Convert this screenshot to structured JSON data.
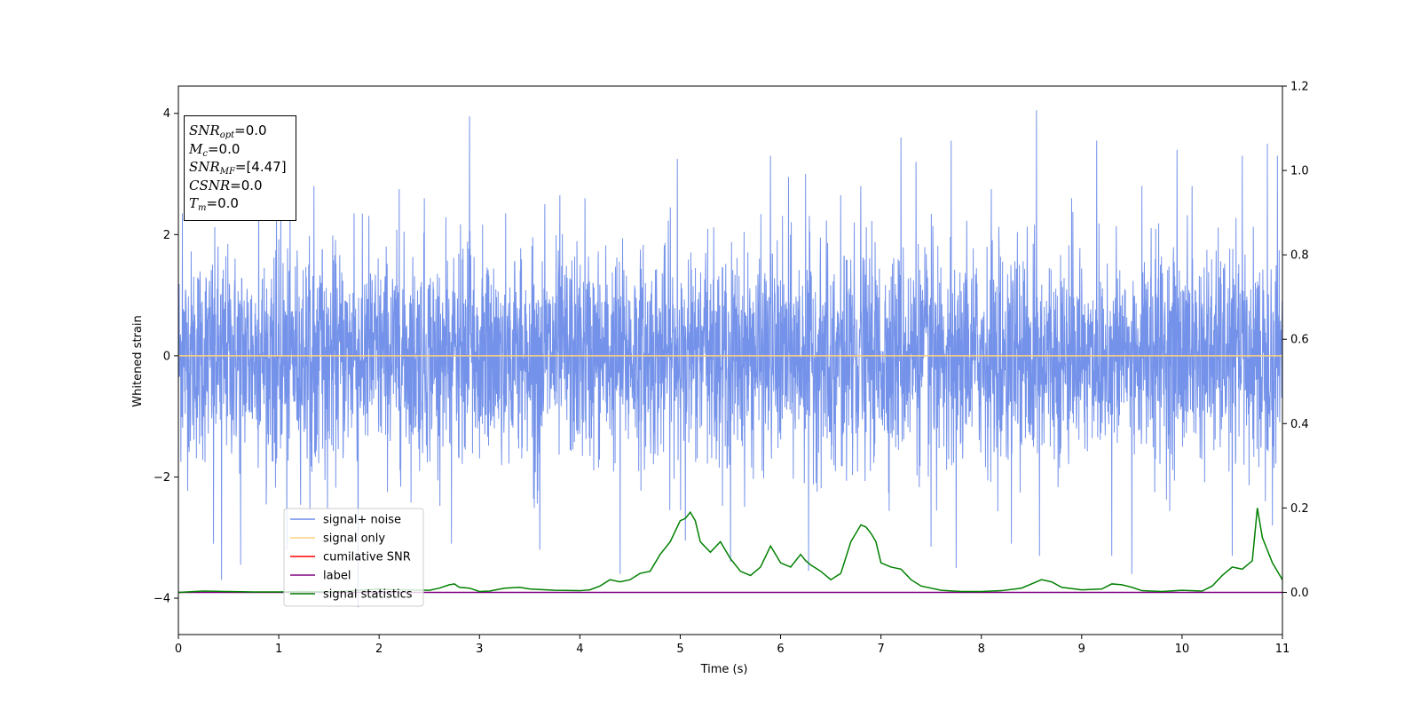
{
  "chart_data": {
    "type": "line",
    "xlabel": "Time (s)",
    "ylabel": "Whitened strain",
    "xlim": [
      0,
      11
    ],
    "ylim_left": [
      -4.6,
      4.45
    ],
    "ylim_right": [
      -0.1,
      1.2
    ],
    "xticks": [
      "0",
      "1",
      "2",
      "3",
      "4",
      "5",
      "6",
      "7",
      "8",
      "9",
      "10",
      "11"
    ],
    "yticks_left": [
      "−4",
      "−2",
      "0",
      "2",
      "4"
    ],
    "yticks_right": [
      "0.0",
      "0.2",
      "0.4",
      "0.6",
      "0.8",
      "1.0",
      "1.2"
    ],
    "legend_placement": "lower-left",
    "legend": [
      {
        "label": "signal+ noise",
        "color": "#6d8ce8"
      },
      {
        "label": "signal only",
        "color": "#ffd27f"
      },
      {
        "label": "cumilative SNR",
        "color": "#ff0000"
      },
      {
        "label": "label",
        "color": "#800080"
      },
      {
        "label": "signal statistics",
        "color": "#008000"
      }
    ],
    "annotation": {
      "snr_opt": {
        "name": "SNR",
        "sub": "opt",
        "value": "=0.0"
      },
      "mc": {
        "name": "M",
        "sub": "c",
        "value": "=0.0"
      },
      "snr_mf": {
        "name": "SNR",
        "sub": "MF",
        "value": "=[4.47]"
      },
      "csnr": {
        "name": "CSNR",
        "value": "=0.0"
      },
      "tm": {
        "name": "T",
        "sub": "m",
        "value": "=0.0"
      }
    },
    "series": [
      {
        "name": "signal+ noise",
        "axis": "left",
        "color": "#6d8ce8",
        "description": "noise-like whitened strain, mostly within about ±2 with spikes up to about ±4",
        "peaks": [
          [
            0.04,
            2.35
          ],
          [
            0.35,
            -3.1
          ],
          [
            0.43,
            -3.7
          ],
          [
            0.62,
            -3.45
          ],
          [
            0.8,
            2.75
          ],
          [
            1.02,
            2.7
          ],
          [
            1.08,
            -3.2
          ],
          [
            1.35,
            2.8
          ],
          [
            1.75,
            2.35
          ],
          [
            1.79,
            -4.15
          ],
          [
            2.2,
            2.75
          ],
          [
            2.45,
            2.6
          ],
          [
            2.72,
            -3.1
          ],
          [
            2.9,
            3.95
          ],
          [
            3.6,
            -3.2
          ],
          [
            3.65,
            2.5
          ],
          [
            3.8,
            2.65
          ],
          [
            4.05,
            2.6
          ],
          [
            4.4,
            -3.6
          ],
          [
            4.9,
            2.45
          ],
          [
            4.97,
            3.25
          ],
          [
            5.05,
            -3.05
          ],
          [
            5.5,
            -3.4
          ],
          [
            5.9,
            3.3
          ],
          [
            6.08,
            2.95
          ],
          [
            6.25,
            3.0
          ],
          [
            6.28,
            -3.55
          ],
          [
            6.6,
            2.65
          ],
          [
            6.8,
            2.8
          ],
          [
            7.2,
            3.6
          ],
          [
            7.35,
            3.2
          ],
          [
            7.5,
            -3.15
          ],
          [
            7.7,
            3.55
          ],
          [
            7.75,
            -3.5
          ],
          [
            8.1,
            2.75
          ],
          [
            8.3,
            -3.1
          ],
          [
            8.55,
            4.05
          ],
          [
            8.58,
            -3.3
          ],
          [
            8.9,
            2.6
          ],
          [
            9.15,
            3.55
          ],
          [
            9.3,
            -3.3
          ],
          [
            9.5,
            -3.6
          ],
          [
            9.6,
            2.8
          ],
          [
            9.95,
            3.4
          ],
          [
            10.1,
            2.8
          ],
          [
            10.5,
            -3.3
          ],
          [
            10.6,
            3.3
          ],
          [
            10.85,
            3.5
          ],
          [
            10.9,
            -2.8
          ],
          [
            10.95,
            3.3
          ]
        ]
      },
      {
        "name": "signal only",
        "axis": "left",
        "color": "#ffd27f",
        "x": [
          0,
          11
        ],
        "y": [
          0,
          0
        ]
      },
      {
        "name": "label",
        "axis": "right",
        "color": "#800080",
        "x": [
          0,
          11
        ],
        "y": [
          0,
          0
        ]
      },
      {
        "name": "signal statistics",
        "axis": "right",
        "color": "#008000",
        "x": [
          0,
          0.25,
          0.5,
          0.75,
          1,
          1.25,
          1.5,
          1.75,
          2,
          2.25,
          2.5,
          2.6,
          2.7,
          2.75,
          2.8,
          2.9,
          3,
          3.1,
          3.25,
          3.4,
          3.5,
          3.75,
          4,
          4.1,
          4.2,
          4.3,
          4.4,
          4.5,
          4.6,
          4.7,
          4.8,
          4.9,
          5,
          5.05,
          5.1,
          5.15,
          5.2,
          5.3,
          5.4,
          5.5,
          5.6,
          5.7,
          5.8,
          5.9,
          6,
          6.1,
          6.2,
          6.25,
          6.3,
          6.4,
          6.5,
          6.6,
          6.7,
          6.8,
          6.85,
          6.9,
          6.95,
          7.0,
          7.1,
          7.2,
          7.3,
          7.4,
          7.6,
          7.8,
          8.0,
          8.2,
          8.4,
          8.5,
          8.6,
          8.7,
          8.8,
          9.0,
          9.2,
          9.3,
          9.4,
          9.5,
          9.6,
          9.8,
          10.0,
          10.2,
          10.3,
          10.4,
          10.5,
          10.6,
          10.7,
          10.75,
          10.8,
          10.9,
          11.0
        ],
        "y": [
          0.0,
          0.003,
          0.002,
          0.001,
          0.001,
          0.002,
          0.001,
          0.004,
          0.008,
          0.006,
          0.005,
          0.01,
          0.018,
          0.02,
          0.012,
          0.01,
          0.002,
          0.003,
          0.01,
          0.012,
          0.008,
          0.005,
          0.004,
          0.006,
          0.015,
          0.03,
          0.025,
          0.03,
          0.045,
          0.05,
          0.09,
          0.12,
          0.17,
          0.175,
          0.19,
          0.17,
          0.12,
          0.095,
          0.12,
          0.08,
          0.05,
          0.04,
          0.06,
          0.11,
          0.07,
          0.06,
          0.09,
          0.075,
          0.065,
          0.05,
          0.03,
          0.045,
          0.12,
          0.16,
          0.155,
          0.14,
          0.12,
          0.07,
          0.06,
          0.055,
          0.03,
          0.015,
          0.005,
          0.002,
          0.002,
          0.004,
          0.01,
          0.02,
          0.03,
          0.025,
          0.012,
          0.006,
          0.008,
          0.02,
          0.018,
          0.012,
          0.004,
          0.002,
          0.005,
          0.003,
          0.015,
          0.04,
          0.06,
          0.055,
          0.075,
          0.2,
          0.13,
          0.07,
          0.03
        ]
      }
    ]
  }
}
